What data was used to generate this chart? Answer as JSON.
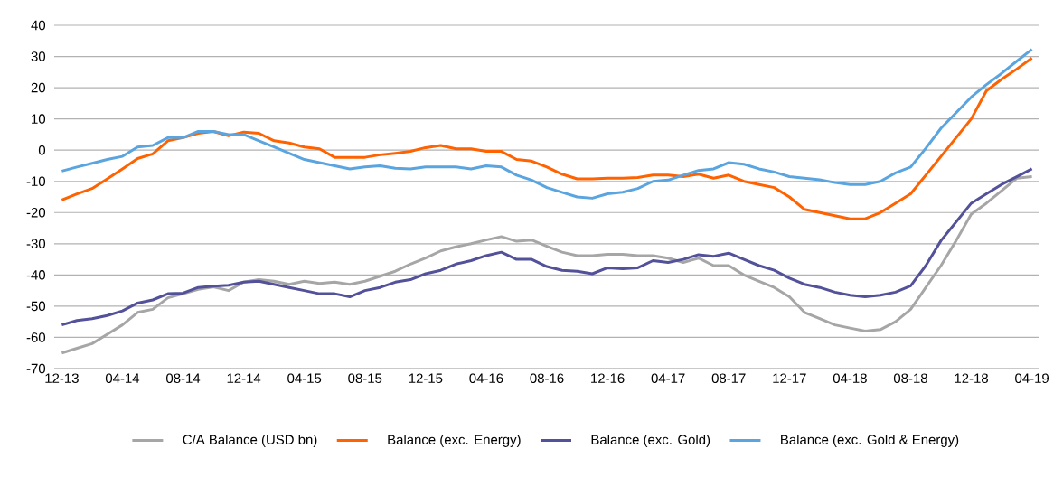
{
  "chart_data": {
    "type": "line",
    "categories": [
      "12-13",
      null,
      null,
      null,
      "04-14",
      null,
      null,
      null,
      "08-14",
      null,
      null,
      null,
      "12-14",
      null,
      null,
      null,
      "04-15",
      null,
      null,
      null,
      "08-15",
      null,
      null,
      null,
      "12-15",
      null,
      null,
      null,
      "04-16",
      null,
      null,
      null,
      "08-16",
      null,
      null,
      null,
      "12-16",
      null,
      null,
      null,
      "04-17",
      null,
      null,
      null,
      "08-17",
      null,
      null,
      null,
      "12-17",
      null,
      null,
      null,
      "04-18",
      null,
      null,
      null,
      "08-18",
      null,
      null,
      null,
      "12-18",
      null,
      null,
      null,
      "04-19"
    ],
    "series": [
      {
        "name": "C/A Balance (USD bn)",
        "color": "#a6a6a6",
        "values": [
          -65,
          -63.5,
          -62,
          -59,
          -56,
          -52,
          -51,
          -47.3,
          -46,
          -44.6,
          -43.8,
          -45,
          -42.3,
          -41.5,
          -42,
          -43,
          -42,
          -42.7,
          -42.3,
          -43,
          -42,
          -40.4,
          -38.8,
          -36.5,
          -34.6,
          -32.3,
          -31,
          -30,
          -28.8,
          -27.7,
          -29.2,
          -28.8,
          -30.8,
          -32.7,
          -33.8,
          -33.8,
          -33.4,
          -33.4,
          -33.8,
          -33.8,
          -34.6,
          -36,
          -34.6,
          -37,
          -37,
          -40,
          -42,
          -44,
          -47,
          -52,
          -54,
          -56,
          -57,
          -58,
          -57.5,
          -55,
          -51,
          -44,
          -37,
          -29,
          -20.5,
          -17,
          -13,
          -9,
          -8.5
        ]
      },
      {
        "name": "Balance (exc. Energy)",
        "color": "#ff6200",
        "values": [
          -16,
          -14,
          -12.3,
          -9.2,
          -6,
          -2.7,
          -1.2,
          3,
          4,
          5.4,
          6,
          4.6,
          5.8,
          5.4,
          3,
          2.3,
          1,
          0.4,
          -2.3,
          -2.3,
          -2.3,
          -1.5,
          -1,
          -0.4,
          0.8,
          1.5,
          0.4,
          0.4,
          -0.4,
          -0.4,
          -3,
          -3.5,
          -5.4,
          -7.7,
          -9.2,
          -9.2,
          -9,
          -9,
          -8.8,
          -8,
          -8,
          -8.5,
          -7.7,
          -9,
          -8,
          -10,
          -11,
          -12,
          -15,
          -19,
          -20,
          -21,
          -22,
          -22,
          -20,
          -17,
          -14,
          -8,
          -2,
          4,
          10,
          19,
          22.7,
          26,
          29.5
        ]
      },
      {
        "name": "Balance (exc. Gold)",
        "color": "#525199",
        "values": [
          -56,
          -54.6,
          -54,
          -53,
          -51.5,
          -49,
          -48,
          -46,
          -45.8,
          -44,
          -43.6,
          -43.3,
          -42.3,
          -42,
          -43,
          -44,
          -45,
          -46,
          -46,
          -47,
          -45,
          -44,
          -42.3,
          -41.5,
          -39.6,
          -38.5,
          -36.5,
          -35.4,
          -33.8,
          -32.7,
          -35,
          -35,
          -37.3,
          -38.5,
          -38.8,
          -39.6,
          -37.7,
          -38,
          -37.7,
          -35.4,
          -36,
          -35,
          -33.5,
          -34,
          -33,
          -35,
          -37,
          -38.5,
          -41,
          -43,
          -44,
          -45.5,
          -46.5,
          -47,
          -46.5,
          -45.5,
          -43.5,
          -37,
          -29,
          -23,
          -17,
          -14,
          -11,
          -8.5,
          -6
        ]
      },
      {
        "name": "Balance (exc. Gold & Energy)",
        "color": "#5aa5e0",
        "values": [
          -6.7,
          -5.4,
          -4.2,
          -3,
          -2,
          1,
          1.5,
          4,
          4,
          6,
          6,
          5,
          5,
          3,
          1,
          -1,
          -3,
          -4,
          -5,
          -6,
          -5.4,
          -5,
          -5.8,
          -6,
          -5.4,
          -5.4,
          -5.4,
          -6,
          -5,
          -5.4,
          -8,
          -9.6,
          -12,
          -13.5,
          -15,
          -15.4,
          -14,
          -13.5,
          -12.3,
          -10,
          -9.6,
          -8,
          -6.5,
          -6,
          -4,
          -4.5,
          -6,
          -7,
          -8.5,
          -9,
          -9.5,
          -10.4,
          -11,
          -11,
          -10,
          -7.3,
          -5.4,
          0.6,
          7,
          12,
          17,
          21,
          24.6,
          28.5,
          32.3
        ]
      }
    ],
    "ylim": [
      -70,
      40
    ],
    "yticks": [
      -70,
      -60,
      -50,
      -40,
      -30,
      -20,
      -10,
      0,
      10,
      20,
      30,
      40
    ],
    "grid": "y",
    "legend": "bottom"
  }
}
